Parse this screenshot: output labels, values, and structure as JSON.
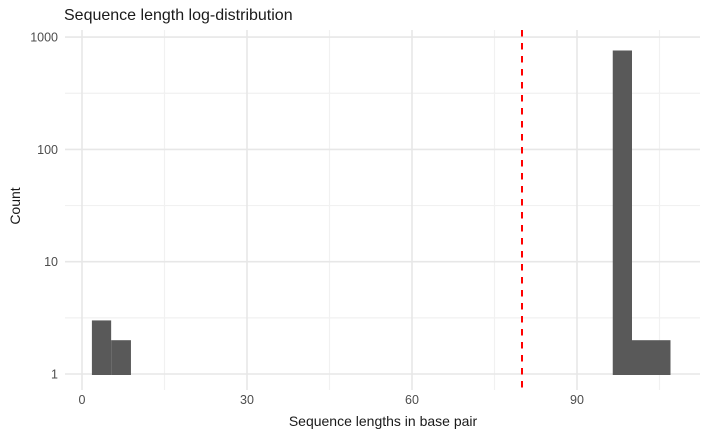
{
  "chart_data": {
    "type": "bar",
    "subtype": "histogram",
    "title": "Sequence length log-distribution",
    "xlabel": "Sequence lengths in base pair",
    "ylabel": "Count",
    "x_ticks": [
      0,
      30,
      60,
      90
    ],
    "x_minor_ticks": [
      15,
      45,
      75,
      105
    ],
    "y_scale": "log10",
    "y_ticks": [
      1,
      10,
      100,
      1000
    ],
    "y_minor_ticks": [
      3.162,
      31.62,
      316.2
    ],
    "xlim": [
      -3.1,
      112.4
    ],
    "ylim": [
      0.72,
      1150
    ],
    "grid": "major-and-minor",
    "legend": "none",
    "bars": [
      {
        "x_start": 1.8,
        "x_end": 5.3,
        "count": 3
      },
      {
        "x_start": 5.3,
        "x_end": 8.9,
        "count": 2
      },
      {
        "x_start": 96.5,
        "x_end": 100,
        "count": 760
      },
      {
        "x_start": 100,
        "x_end": 107,
        "count": 2
      }
    ],
    "vline": {
      "x": 80,
      "style": "dashed",
      "color": "#FF0000"
    },
    "colors": {
      "bar_fill": "#595959",
      "grid_major": "#E7E7E7",
      "grid_minor": "#F1F1F1",
      "axis_text": "#4D4D4D",
      "title_text": "#1A1A1A",
      "background": "#FFFFFF"
    }
  }
}
